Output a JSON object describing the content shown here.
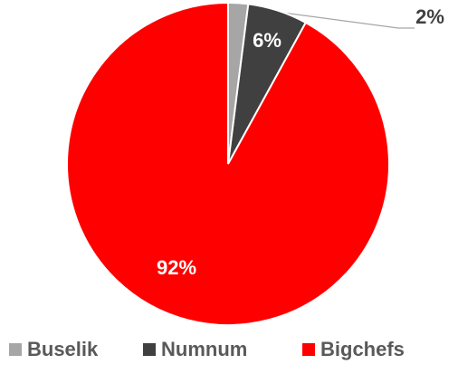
{
  "chart_data": {
    "type": "pie",
    "categories": [
      "Buselik",
      "Numnum",
      "Bigchefs"
    ],
    "values": [
      2,
      6,
      92
    ],
    "value_labels": [
      "2%",
      "6%",
      "92%"
    ],
    "colors": [
      "#a6a6a6",
      "#404040",
      "#ff0000"
    ],
    "legend": "bottom"
  }
}
